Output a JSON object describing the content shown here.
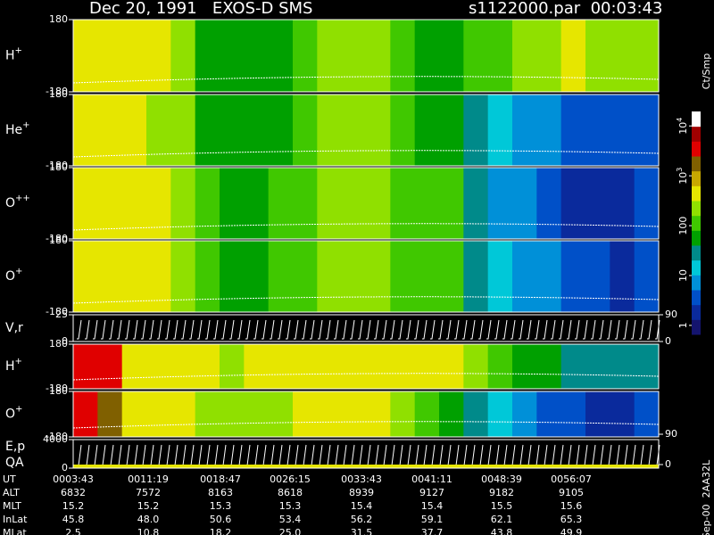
{
  "header": {
    "title": "Dec 20, 1991   EXOS-D SMS",
    "file": "s1122000.par  00:03:43"
  },
  "colorbar": {
    "label": "Ct/Smp",
    "clim": [
      0.66,
      19500
    ],
    "colors": [
      "#14146e",
      "#0a2a9c",
      "#0050c8",
      "#0090d8",
      "#00c8d8",
      "#008a8a",
      "#00a000",
      "#40c800",
      "#90e000",
      "#e6e600",
      "#c8a800",
      "#806000",
      "#e00000",
      "#a00000",
      "#ffffff"
    ],
    "ticks": [
      {
        "value": 10000,
        "label": "10",
        "exp": "4"
      },
      {
        "value": 1000,
        "label": "10",
        "exp": "3"
      },
      100,
      10,
      1
    ]
  },
  "panels": [
    {
      "type": "heatmap",
      "label": "H",
      "sup": "+",
      "ylim": [
        -180,
        180
      ],
      "yticks": [
        180,
        -180
      ],
      "values": [
        630,
        630,
        500,
        500,
        250,
        80,
        63,
        63,
        80,
        100,
        200,
        250,
        200,
        100,
        80,
        80,
        100,
        125,
        160,
        250,
        400,
        250,
        200,
        160
      ]
    },
    {
      "type": "heatmap",
      "label": "He",
      "sup": "+",
      "ylim": [
        -180,
        180
      ],
      "yticks": [
        180,
        -180
      ],
      "values": [
        400,
        400,
        320,
        250,
        200,
        80,
        63,
        63,
        80,
        100,
        200,
        250,
        200,
        100,
        80,
        80,
        32,
        16,
        8,
        6,
        4,
        3,
        3,
        4
      ]
    },
    {
      "type": "heatmap",
      "label": "O",
      "sup": "++",
      "ylim": [
        -180,
        180
      ],
      "yticks": [
        180,
        -180
      ],
      "values": [
        500,
        500,
        400,
        400,
        250,
        100,
        80,
        80,
        100,
        125,
        200,
        250,
        200,
        100,
        100,
        100,
        25,
        10,
        6,
        3,
        2.5,
        2,
        2,
        3
      ]
    },
    {
      "type": "heatmap",
      "label": "O",
      "sup": "+",
      "ylim": [
        -180,
        180
      ],
      "yticks": [
        180,
        -180
      ],
      "values": [
        500,
        500,
        400,
        400,
        250,
        100,
        80,
        80,
        100,
        125,
        200,
        250,
        200,
        100,
        100,
        100,
        32,
        16,
        8,
        6,
        4,
        3,
        2.5,
        3
      ]
    },
    {
      "type": "trace",
      "label": "V,r",
      "ylim": [
        0,
        25
      ],
      "yticks": [
        25,
        0
      ],
      "y2lim": [
        0,
        90
      ],
      "y2ticks": [
        90,
        0
      ]
    },
    {
      "type": "heatmap",
      "label": "H",
      "sup": "+",
      "ylim": [
        -180,
        180
      ],
      "yticks": [
        180,
        -180
      ],
      "values": [
        4000,
        2500,
        630,
        500,
        400,
        320,
        250,
        320,
        400,
        500,
        500,
        630,
        500,
        400,
        320,
        320,
        160,
        100,
        63,
        50,
        40,
        40,
        32,
        32
      ]
    },
    {
      "type": "heatmap",
      "label": "O",
      "sup": "+",
      "ylim": [
        -180,
        180
      ],
      "yticks": [
        180,
        -180
      ],
      "y2ticks": [
        90
      ],
      "values": [
        4000,
        2000,
        630,
        400,
        320,
        200,
        160,
        200,
        250,
        320,
        320,
        400,
        320,
        200,
        100,
        80,
        32,
        16,
        8,
        4,
        3,
        2.5,
        2.5,
        3
      ]
    },
    {
      "type": "trace",
      "label": "E,p",
      "label2": "QA",
      "ylim": [
        0,
        4000
      ],
      "yticks": [
        4000,
        0
      ],
      "y2ticks": [
        0
      ]
    }
  ],
  "footer": {
    "side": "Sep-00  2AA32L",
    "rows": [
      {
        "name": "UT",
        "values": [
          "0003:43",
          "0011:19",
          "0018:47",
          "0026:15",
          "0033:43",
          "0041:11",
          "0048:39",
          "0056:07"
        ]
      },
      {
        "name": "ALT",
        "values": [
          6832,
          7572,
          8163,
          8618,
          8939,
          9127,
          9182,
          9105
        ]
      },
      {
        "name": "MLT",
        "values": [
          15.2,
          15.2,
          15.3,
          15.3,
          15.4,
          15.4,
          15.5,
          15.6
        ]
      },
      {
        "name": "InLat",
        "values": [
          45.8,
          48.0,
          50.6,
          53.4,
          56.2,
          59.1,
          62.1,
          65.3
        ],
        "value_labels": [
          "45.8",
          "48.0",
          "50.6",
          "53.4",
          "56.2",
          "59.1",
          "62.1",
          "65.3"
        ]
      },
      {
        "name": "MLat",
        "values": [
          2.5,
          10.8,
          18.2,
          25.0,
          31.5,
          37.7,
          43.8,
          49.9
        ],
        "value_labels": [
          "2.5",
          "10.8",
          "18.2",
          "25.0",
          "31.5",
          "37.7",
          "43.8",
          "49.9"
        ]
      }
    ]
  }
}
